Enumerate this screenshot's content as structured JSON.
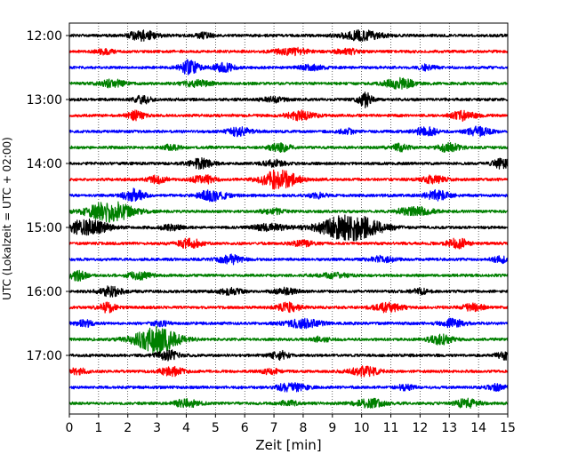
{
  "chart_data": {
    "type": "line",
    "title": "",
    "xlabel": "Zeit  [min]",
    "ylabel": "UTC (Lokalzeit = UTC + 02:00)",
    "xlim": [
      0,
      15
    ],
    "x_ticks": [
      "0",
      "1",
      "2",
      "3",
      "4",
      "5",
      "6",
      "7",
      "8",
      "9",
      "10",
      "11",
      "12",
      "13",
      "14",
      "15"
    ],
    "y_tick_labels": [
      "12:00",
      "13:00",
      "14:00",
      "15:00",
      "16:00",
      "17:00"
    ],
    "trace_interval_min": 15,
    "grid": "vertical-dotted",
    "colors": [
      "#000000",
      "#ff0000",
      "#0000ff",
      "#008000"
    ],
    "series": [
      {
        "start": "12:00",
        "color": "#000000",
        "events": [
          [
            2.5,
            0.5,
            0.55
          ],
          [
            10.0,
            0.7,
            0.55
          ],
          [
            4.6,
            0.3,
            0.3
          ]
        ]
      },
      {
        "start": "12:15",
        "color": "#ff0000",
        "events": [
          [
            7.6,
            0.6,
            0.4
          ],
          [
            1.2,
            0.3,
            0.3
          ],
          [
            9.5,
            0.4,
            0.3
          ]
        ]
      },
      {
        "start": "12:30",
        "color": "#0000ff",
        "events": [
          [
            4.1,
            0.3,
            0.9
          ],
          [
            5.3,
            0.4,
            0.45
          ],
          [
            8.3,
            0.4,
            0.3
          ],
          [
            12.2,
            0.3,
            0.3
          ]
        ]
      },
      {
        "start": "12:45",
        "color": "#008000",
        "events": [
          [
            1.5,
            0.4,
            0.45
          ],
          [
            4.4,
            0.5,
            0.4
          ],
          [
            11.3,
            0.5,
            0.6
          ]
        ]
      },
      {
        "start": "13:00",
        "color": "#000000",
        "events": [
          [
            2.5,
            0.3,
            0.45
          ],
          [
            10.1,
            0.25,
            0.9
          ],
          [
            7.0,
            0.4,
            0.3
          ]
        ]
      },
      {
        "start": "13:15",
        "color": "#ff0000",
        "events": [
          [
            2.3,
            0.3,
            0.55
          ],
          [
            7.9,
            0.5,
            0.5
          ],
          [
            13.5,
            0.4,
            0.55
          ]
        ]
      },
      {
        "start": "13:30",
        "color": "#0000ff",
        "events": [
          [
            5.8,
            0.4,
            0.5
          ],
          [
            12.2,
            0.4,
            0.5
          ],
          [
            14.0,
            0.4,
            0.5
          ],
          [
            9.5,
            0.3,
            0.3
          ]
        ]
      },
      {
        "start": "13:45",
        "color": "#008000",
        "events": [
          [
            7.2,
            0.4,
            0.45
          ],
          [
            11.3,
            0.3,
            0.4
          ],
          [
            13.0,
            0.4,
            0.5
          ],
          [
            3.5,
            0.3,
            0.3
          ]
        ]
      },
      {
        "start": "14:00",
        "color": "#000000",
        "events": [
          [
            4.5,
            0.4,
            0.55
          ],
          [
            7.0,
            0.4,
            0.35
          ],
          [
            14.8,
            0.3,
            0.6
          ]
        ]
      },
      {
        "start": "14:15",
        "color": "#ff0000",
        "events": [
          [
            7.2,
            0.6,
            1.2
          ],
          [
            3.0,
            0.3,
            0.45
          ],
          [
            4.6,
            0.4,
            0.45
          ],
          [
            12.5,
            0.4,
            0.45
          ]
        ]
      },
      {
        "start": "14:30",
        "color": "#0000ff",
        "events": [
          [
            2.2,
            0.35,
            0.75
          ],
          [
            4.9,
            0.5,
            0.6
          ],
          [
            12.6,
            0.4,
            0.6
          ],
          [
            8.5,
            0.3,
            0.3
          ]
        ]
      },
      {
        "start": "14:45",
        "color": "#008000",
        "events": [
          [
            1.4,
            0.8,
            1.2
          ],
          [
            11.8,
            0.6,
            0.5
          ],
          [
            7.0,
            0.4,
            0.3
          ]
        ]
      },
      {
        "start": "15:00",
        "color": "#000000",
        "events": [
          [
            9.6,
            1.0,
            1.6
          ],
          [
            0.6,
            0.7,
            0.95
          ],
          [
            3.5,
            0.4,
            0.3
          ],
          [
            6.9,
            0.6,
            0.4
          ]
        ]
      },
      {
        "start": "15:15",
        "color": "#ff0000",
        "events": [
          [
            4.1,
            0.4,
            0.55
          ],
          [
            13.3,
            0.4,
            0.55
          ],
          [
            8.0,
            0.4,
            0.3
          ]
        ]
      },
      {
        "start": "15:30",
        "color": "#0000ff",
        "events": [
          [
            5.5,
            0.4,
            0.55
          ],
          [
            10.7,
            0.4,
            0.35
          ],
          [
            14.8,
            0.3,
            0.4
          ]
        ]
      },
      {
        "start": "15:45",
        "color": "#008000",
        "events": [
          [
            0.3,
            0.3,
            0.55
          ],
          [
            2.4,
            0.4,
            0.45
          ],
          [
            9.0,
            0.5,
            0.3
          ]
        ]
      },
      {
        "start": "16:00",
        "color": "#000000",
        "events": [
          [
            1.4,
            0.4,
            0.55
          ],
          [
            5.5,
            0.4,
            0.35
          ],
          [
            7.4,
            0.4,
            0.35
          ],
          [
            12.0,
            0.3,
            0.3
          ]
        ]
      },
      {
        "start": "16:15",
        "color": "#ff0000",
        "events": [
          [
            1.3,
            0.3,
            0.55
          ],
          [
            7.5,
            0.4,
            0.5
          ],
          [
            10.9,
            0.5,
            0.5
          ],
          [
            13.8,
            0.4,
            0.4
          ]
        ]
      },
      {
        "start": "16:30",
        "color": "#0000ff",
        "events": [
          [
            0.5,
            0.3,
            0.4
          ],
          [
            8.0,
            0.6,
            0.5
          ],
          [
            13.1,
            0.4,
            0.5
          ],
          [
            3.1,
            0.3,
            0.3
          ]
        ]
      },
      {
        "start": "16:45",
        "color": "#008000",
        "events": [
          [
            3.0,
            0.75,
            1.6
          ],
          [
            12.7,
            0.4,
            0.55
          ],
          [
            8.6,
            0.3,
            0.3
          ]
        ]
      },
      {
        "start": "17:00",
        "color": "#000000",
        "events": [
          [
            3.4,
            0.4,
            0.55
          ],
          [
            7.2,
            0.3,
            0.5
          ],
          [
            14.9,
            0.3,
            0.5
          ]
        ]
      },
      {
        "start": "17:15",
        "color": "#ff0000",
        "events": [
          [
            3.5,
            0.4,
            0.55
          ],
          [
            10.1,
            0.5,
            0.55
          ],
          [
            0.3,
            0.3,
            0.35
          ],
          [
            6.9,
            0.3,
            0.3
          ]
        ]
      },
      {
        "start": "17:30",
        "color": "#0000ff",
        "events": [
          [
            7.6,
            0.5,
            0.5
          ],
          [
            14.6,
            0.3,
            0.35
          ],
          [
            11.5,
            0.3,
            0.3
          ]
        ]
      },
      {
        "start": "17:45",
        "color": "#008000",
        "events": [
          [
            4.0,
            0.4,
            0.45
          ],
          [
            10.3,
            0.5,
            0.5
          ],
          [
            13.6,
            0.4,
            0.5
          ],
          [
            7.5,
            0.3,
            0.3
          ]
        ]
      }
    ]
  }
}
